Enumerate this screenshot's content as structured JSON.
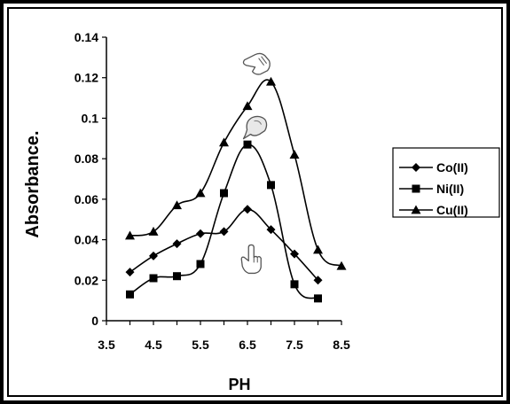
{
  "chart_data": {
    "type": "line",
    "title": "",
    "xlabel": "PH",
    "ylabel": "Absorbance.",
    "xlim": [
      3.5,
      8.5
    ],
    "ylim": [
      0,
      0.14
    ],
    "xticks": [
      "3.5",
      "4.5",
      "5.5",
      "6.5",
      "7.5",
      "8.5"
    ],
    "yticks": [
      "0",
      "0.02",
      "0.04",
      "0.06",
      "0.08",
      "0.1",
      "0.12",
      "0.14"
    ],
    "grid": false,
    "legend_position": "right",
    "series": [
      {
        "name": "Co(II)",
        "marker": "diamond",
        "color": "#000000",
        "x": [
          4.0,
          4.5,
          5.0,
          5.5,
          6.0,
          6.5,
          7.0,
          7.5,
          8.0
        ],
        "y": [
          0.024,
          0.032,
          0.038,
          0.043,
          0.044,
          0.055,
          0.045,
          0.033,
          0.02
        ]
      },
      {
        "name": "Ni(II)",
        "marker": "square",
        "color": "#000000",
        "x": [
          4.0,
          4.5,
          5.0,
          5.5,
          6.0,
          6.5,
          7.0,
          7.5,
          8.0
        ],
        "y": [
          0.013,
          0.021,
          0.022,
          0.028,
          0.063,
          0.087,
          0.067,
          0.018,
          0.011
        ]
      },
      {
        "name": "Cu(II)",
        "marker": "triangle",
        "color": "#000000",
        "x": [
          4.0,
          4.5,
          5.0,
          5.5,
          6.0,
          6.5,
          7.0,
          7.5,
          8.0,
          8.5
        ],
        "y": [
          0.042,
          0.044,
          0.057,
          0.063,
          0.088,
          0.106,
          0.118,
          0.082,
          0.035,
          0.027
        ]
      }
    ],
    "annotations": [
      {
        "name": "cu-peak-hand-icon",
        "icon": "pointing-hand-icon",
        "x": 6.7,
        "y": 0.127
      },
      {
        "name": "ni-peak-hand-icon",
        "icon": "pointing-hand-icon",
        "x": 6.68,
        "y": 0.096
      },
      {
        "name": "co-peak-hand-icon",
        "icon": "pointing-hand-icon",
        "x": 6.58,
        "y": 0.03
      }
    ]
  }
}
